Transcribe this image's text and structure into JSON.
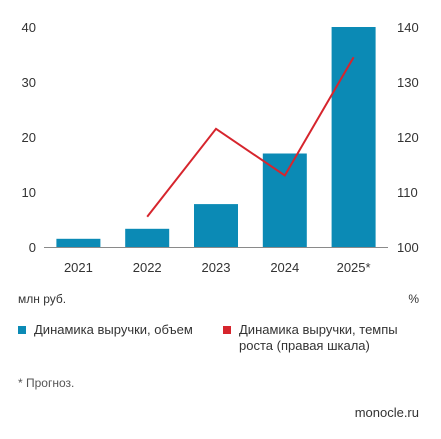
{
  "chart_data": {
    "type": "bar",
    "title": "",
    "categories": [
      "2021",
      "2022",
      "2023",
      "2024",
      "2025*"
    ],
    "series": [
      {
        "name": "Динамика выручки, объем",
        "type": "bar",
        "axis": "left",
        "color": "#0b8ab5",
        "values": [
          1.5,
          3.3,
          7.8,
          17,
          40
        ]
      },
      {
        "name": "Динамика выручки, темпы роста (правая шкала)",
        "type": "line",
        "axis": "right",
        "color": "#d6252d",
        "values": [
          null,
          105.5,
          121.5,
          113,
          134.5
        ]
      }
    ],
    "y_left": {
      "label": "млн руб.",
      "ylim": [
        0,
        40
      ],
      "ticks": [
        "0",
        "10",
        "20",
        "30",
        "40"
      ]
    },
    "y_right": {
      "label": "%",
      "ylim": [
        100,
        140
      ],
      "ticks": [
        "100",
        "110",
        "120",
        "130",
        "140"
      ]
    },
    "grid": false,
    "legend_position": "bottom"
  },
  "footnote": "* Прогноз.",
  "brand": "monocle.ru"
}
